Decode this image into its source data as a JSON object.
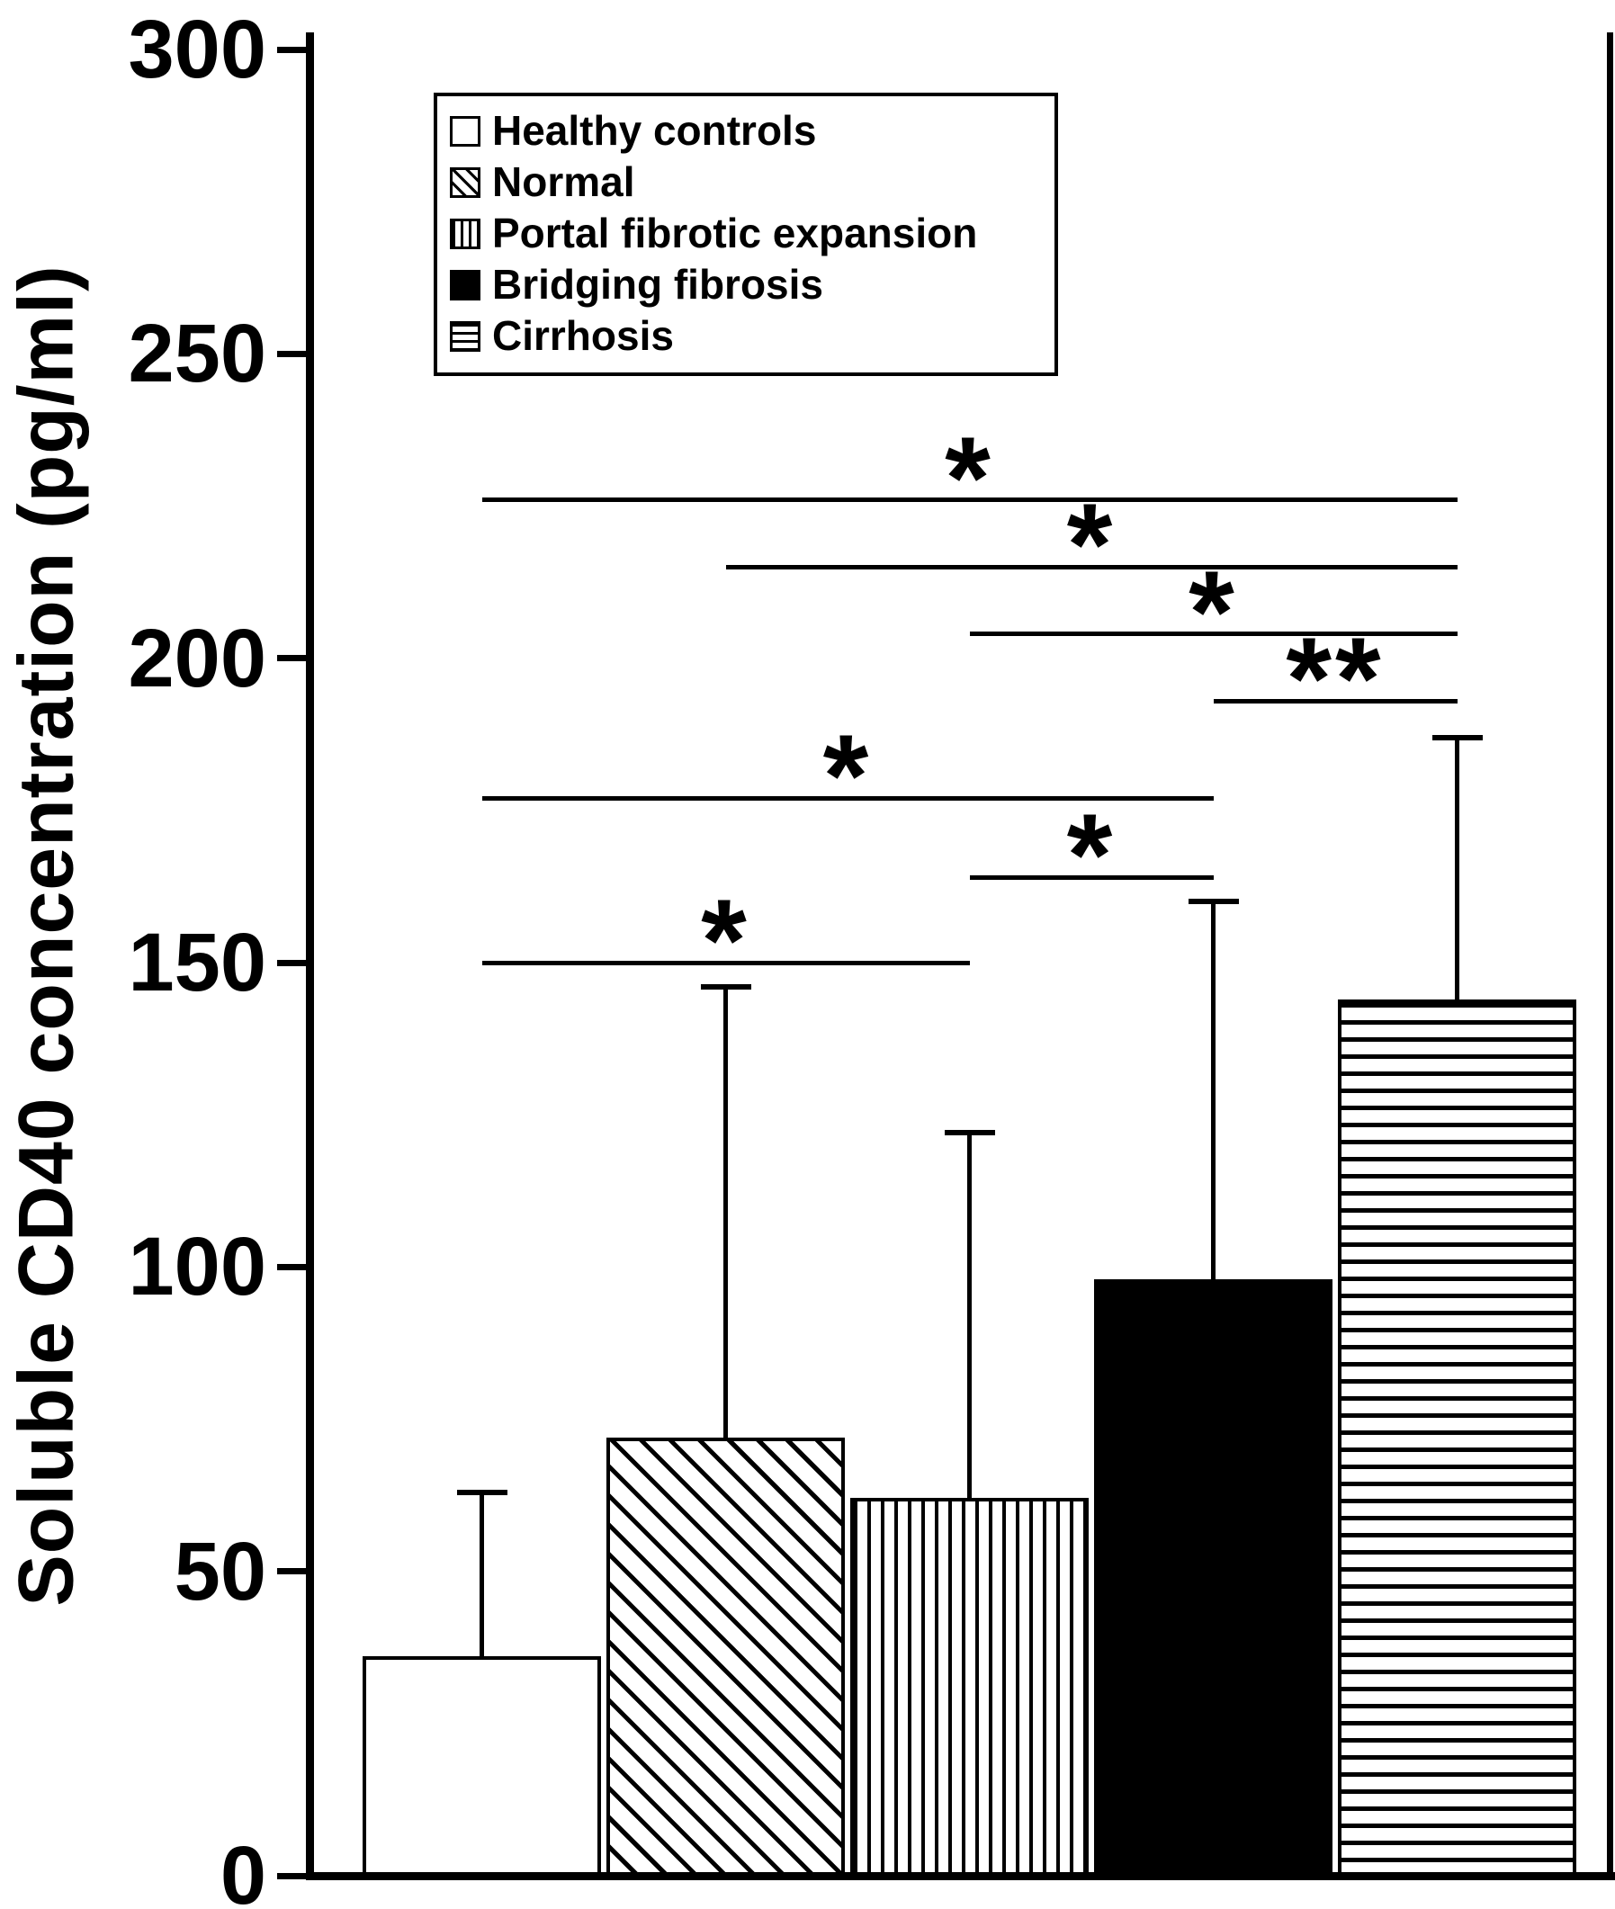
{
  "colors": {
    "foreground": "#000000",
    "background": "#ffffff"
  },
  "chart_data": {
    "type": "bar",
    "title": "",
    "xlabel": "",
    "ylabel": "Soluble CD40 concentration (pg/ml)",
    "ylim": [
      0,
      300
    ],
    "yticks": [
      0,
      50,
      100,
      150,
      200,
      250,
      300
    ],
    "grid": false,
    "legend_position": "top-left-inside",
    "categories": [
      "Healthy controls",
      "Normal",
      "Portal fibrotic expansion",
      "Bridging fibrosis",
      "Cirrhosis"
    ],
    "series": [
      {
        "name": "Soluble CD40 concentration",
        "values": [
          36,
          72,
          62,
          98,
          144
        ],
        "error_bar_top": [
          63,
          146,
          122,
          160,
          187
        ]
      }
    ],
    "bar_styles": [
      {
        "label": "Healthy controls",
        "pattern": "plain"
      },
      {
        "label": "Normal",
        "pattern": "diagonal-hatch"
      },
      {
        "label": "Portal fibrotic expansion",
        "pattern": "vertical-lines"
      },
      {
        "label": "Bridging fibrosis",
        "pattern": "solid"
      },
      {
        "label": "Cirrhosis",
        "pattern": "horizontal-lines"
      }
    ],
    "significance_lines": [
      {
        "from_index": 0,
        "to_index": 2,
        "level": 150,
        "label": "*"
      },
      {
        "from_index": 2,
        "to_index": 3,
        "level": 164,
        "label": "*"
      },
      {
        "from_index": 0,
        "to_index": 3,
        "level": 177,
        "label": "*"
      },
      {
        "from_index": 3,
        "to_index": 4,
        "level": 193,
        "label": "**"
      },
      {
        "from_index": 2,
        "to_index": 4,
        "level": 204,
        "label": "*"
      },
      {
        "from_index": 1,
        "to_index": 4,
        "level": 215,
        "label": "*"
      },
      {
        "from_index": 0,
        "to_index": 4,
        "level": 226,
        "label": "*"
      }
    ]
  }
}
